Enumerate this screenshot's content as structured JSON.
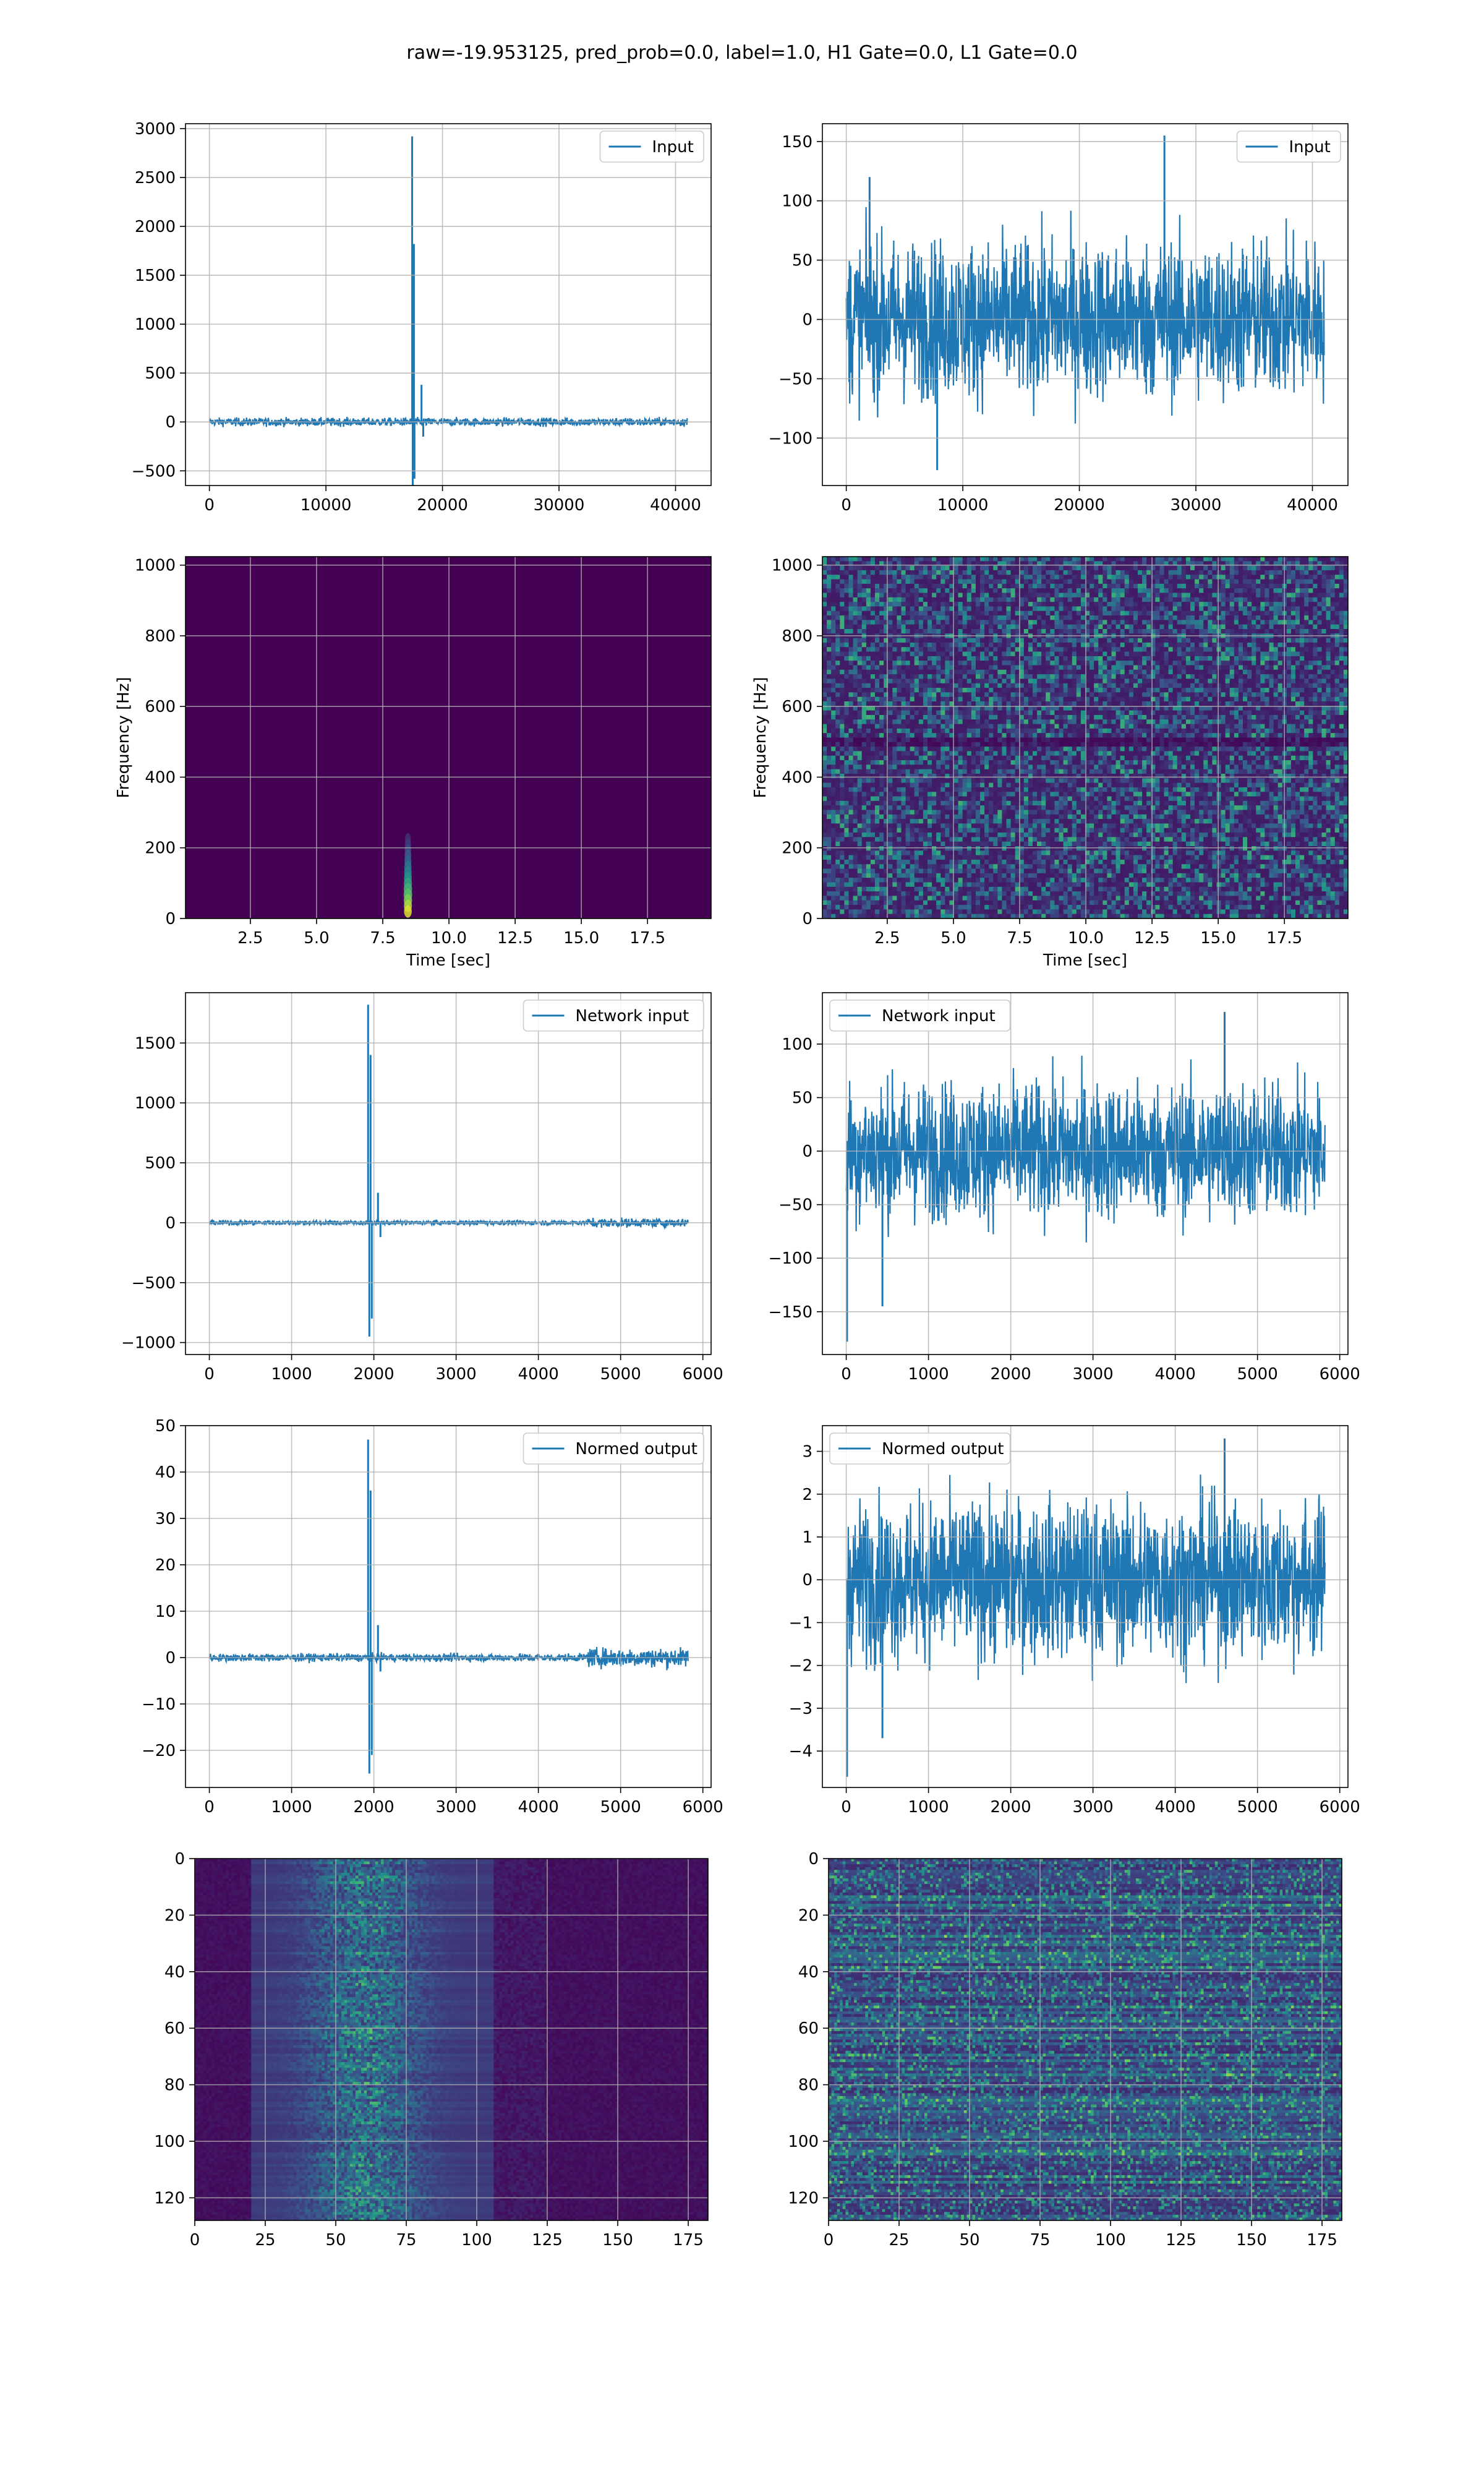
{
  "figure": {
    "suptitle": "raw=-19.953125, pred_prob=0.0, label=1.0, H1 Gate=0.0, L1 Gate=0.0"
  },
  "colors": {
    "line": "#1f77b4",
    "grid": "#b0b0b0",
    "viridis_low": "#440154",
    "viridis_high": "#fde725"
  },
  "chart_data": [
    {
      "id": "h1-input",
      "type": "line",
      "title": "",
      "xlabel": "",
      "ylabel": "",
      "legend": "Input",
      "legend_loc": "upper right",
      "xlim": [
        -2050,
        43050
      ],
      "ylim": [
        -650,
        3050
      ],
      "xticks": [
        0,
        10000,
        20000,
        30000,
        40000
      ],
      "yticks": [
        -500,
        0,
        500,
        1000,
        1500,
        2000,
        2500,
        3000
      ],
      "x_range": [
        0,
        41000
      ],
      "noise_amp": 45,
      "spikes": [
        {
          "x": 17400,
          "value": 2920
        },
        {
          "x": 17450,
          "value": -650
        },
        {
          "x": 17550,
          "value": 1820
        },
        {
          "x": 17600,
          "value": -580
        },
        {
          "x": 18200,
          "value": 380
        },
        {
          "x": 18350,
          "value": -150
        }
      ],
      "grid": true
    },
    {
      "id": "l1-input",
      "type": "line",
      "title": "",
      "xlabel": "",
      "ylabel": "",
      "legend": "Input",
      "legend_loc": "upper right",
      "xlim": [
        -2050,
        43050
      ],
      "ylim": [
        -140,
        165
      ],
      "xticks": [
        0,
        10000,
        20000,
        30000,
        40000
      ],
      "yticks": [
        -100,
        -50,
        0,
        50,
        100,
        150
      ],
      "x_range": [
        0,
        41000
      ],
      "noise_amp": 72,
      "spikes": [
        {
          "x": 27300,
          "value": 155
        },
        {
          "x": 7800,
          "value": -127
        },
        {
          "x": 2000,
          "value": 120
        }
      ],
      "grid": true
    },
    {
      "id": "h1-spectrogram",
      "type": "heatmap",
      "title": "",
      "xlabel": "Time [sec]",
      "ylabel": "Frequency [Hz]",
      "xlim": [
        0.05,
        19.9
      ],
      "ylim": [
        0,
        1024
      ],
      "xticks": [
        2.5,
        5.0,
        7.5,
        10.0,
        12.5,
        15.0,
        17.5
      ],
      "yticks": [
        0,
        200,
        400,
        600,
        800,
        1000
      ],
      "pattern": "single-blob",
      "blob": {
        "t": 8.45,
        "f_low": 20,
        "f_high": 260
      },
      "grid": true
    },
    {
      "id": "l1-spectrogram",
      "type": "heatmap",
      "title": "",
      "xlabel": "Time [sec]",
      "ylabel": "Frequency [Hz]",
      "xlim": [
        0.05,
        19.9
      ],
      "ylim": [
        0,
        1024
      ],
      "xticks": [
        2.5,
        5.0,
        7.5,
        10.0,
        12.5,
        15.0,
        17.5
      ],
      "yticks": [
        0,
        200,
        400,
        600,
        800,
        1000
      ],
      "pattern": "noise",
      "grid": true
    },
    {
      "id": "h1-network-input",
      "type": "line",
      "title": "",
      "xlabel": "",
      "ylabel": "",
      "legend": "Network input",
      "legend_loc": "upper right",
      "xlim": [
        -290,
        6100
      ],
      "ylim": [
        -1100,
        1920
      ],
      "xticks": [
        0,
        1000,
        2000,
        3000,
        4000,
        5000,
        6000
      ],
      "yticks": [
        -1000,
        -500,
        0,
        500,
        1000,
        1500
      ],
      "x_range": [
        0,
        5820
      ],
      "noise_amp": 20,
      "bump": {
        "from": 4600,
        "to": 5820,
        "amp": 40
      },
      "spikes": [
        {
          "x": 1930,
          "value": 1820
        },
        {
          "x": 1945,
          "value": -950
        },
        {
          "x": 1960,
          "value": 1400
        },
        {
          "x": 1975,
          "value": -800
        },
        {
          "x": 2050,
          "value": 250
        },
        {
          "x": 2080,
          "value": -120
        }
      ],
      "grid": true
    },
    {
      "id": "l1-network-input",
      "type": "line",
      "title": "",
      "xlabel": "",
      "ylabel": "",
      "legend": "Network input",
      "legend_loc": "upper left",
      "xlim": [
        -290,
        6100
      ],
      "ylim": [
        -190,
        148
      ],
      "xticks": [
        0,
        1000,
        2000,
        3000,
        4000,
        5000,
        6000
      ],
      "yticks": [
        -150,
        -100,
        -50,
        0,
        50,
        100
      ],
      "x_range": [
        0,
        5820
      ],
      "noise_amp": 70,
      "spikes": [
        {
          "x": 10,
          "value": -178
        },
        {
          "x": 4600,
          "value": 130
        },
        {
          "x": 440,
          "value": -145
        }
      ],
      "grid": true
    },
    {
      "id": "h1-normed-output",
      "type": "line",
      "title": "",
      "xlabel": "",
      "ylabel": "",
      "legend": "Normed output",
      "legend_loc": "upper right",
      "xlim": [
        -290,
        6100
      ],
      "ylim": [
        -28,
        50
      ],
      "xticks": [
        0,
        1000,
        2000,
        3000,
        4000,
        5000,
        6000
      ],
      "yticks": [
        -20,
        -10,
        0,
        10,
        20,
        30,
        40,
        50
      ],
      "x_range": [
        0,
        5820
      ],
      "noise_amp": 0.9,
      "bump": {
        "from": 4600,
        "to": 5820,
        "amp": 2.2
      },
      "spikes": [
        {
          "x": 1930,
          "value": 47
        },
        {
          "x": 1945,
          "value": -25
        },
        {
          "x": 1960,
          "value": 36
        },
        {
          "x": 1975,
          "value": -21
        },
        {
          "x": 2050,
          "value": 7
        },
        {
          "x": 2080,
          "value": -3
        }
      ],
      "grid": true
    },
    {
      "id": "l1-normed-output",
      "type": "line",
      "title": "",
      "xlabel": "",
      "ylabel": "",
      "legend": "Normed output",
      "legend_loc": "upper left",
      "xlim": [
        -290,
        6100
      ],
      "ylim": [
        -4.85,
        3.6
      ],
      "xticks": [
        0,
        1000,
        2000,
        3000,
        4000,
        5000,
        6000
      ],
      "yticks": [
        -4,
        -3,
        -2,
        -1,
        0,
        1,
        2,
        3
      ],
      "x_range": [
        0,
        5820
      ],
      "noise_amp": 2.0,
      "spikes": [
        {
          "x": 10,
          "value": -4.6
        },
        {
          "x": 4600,
          "value": 3.3
        },
        {
          "x": 440,
          "value": -3.7
        }
      ],
      "grid": true
    },
    {
      "id": "h1-feature-map",
      "type": "heatmap",
      "title": "",
      "xlabel": "",
      "ylabel": "",
      "xlim": [
        0,
        182
      ],
      "ylim": [
        128,
        0
      ],
      "xticks": [
        0,
        25,
        50,
        75,
        100,
        125,
        150,
        175
      ],
      "yticks": [
        0,
        20,
        40,
        60,
        80,
        100,
        120
      ],
      "pattern": "band",
      "band": {
        "from": 20,
        "to": 105,
        "peak": 60
      },
      "grid": true
    },
    {
      "id": "l1-feature-map",
      "type": "heatmap",
      "title": "",
      "xlabel": "",
      "ylabel": "",
      "xlim": [
        0,
        182
      ],
      "ylim": [
        128,
        0
      ],
      "xticks": [
        0,
        25,
        50,
        75,
        100,
        125,
        150,
        175
      ],
      "yticks": [
        0,
        20,
        40,
        60,
        80,
        100,
        120
      ],
      "pattern": "rows-noise",
      "grid": true
    }
  ]
}
